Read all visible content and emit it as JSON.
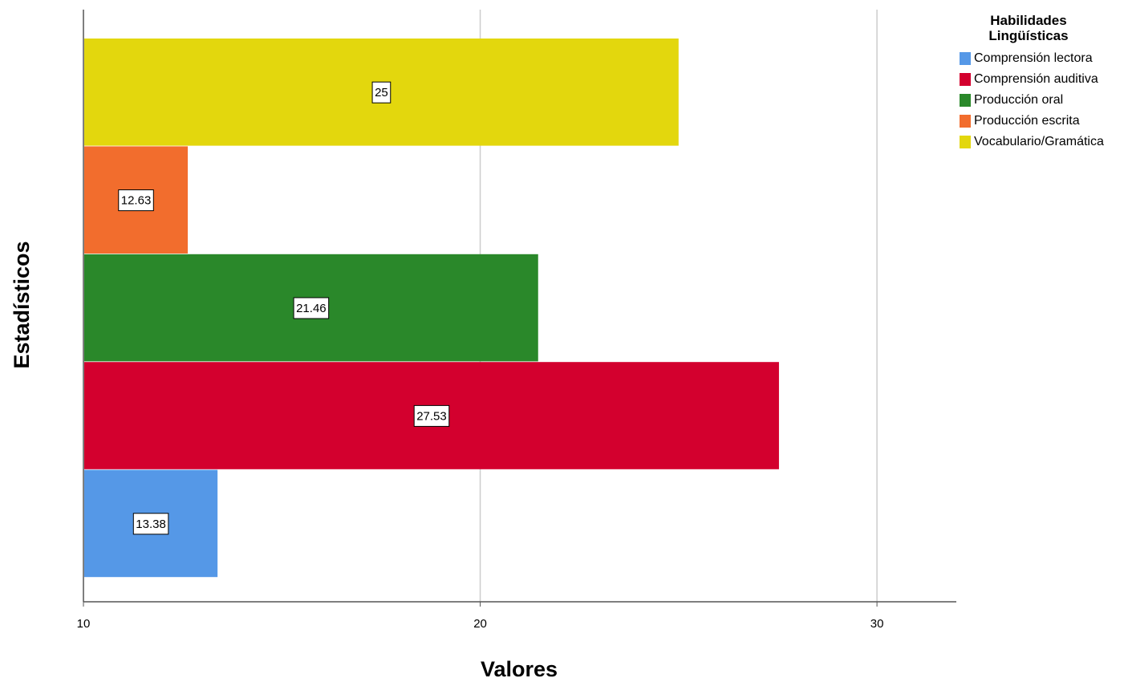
{
  "chart_data": {
    "type": "bar",
    "orientation": "horizontal",
    "xlabel": "Valores",
    "ylabel": "Estadísticos",
    "xlim": [
      10,
      32
    ],
    "xticks": [
      10,
      20,
      30
    ],
    "grid": true,
    "legend_position": "top-right",
    "legend_title": "Habilidades Lingüísticas",
    "series": [
      {
        "name": "Comprensión lectora",
        "value": 13.38,
        "label": "13.38",
        "color": "#5598E7"
      },
      {
        "name": "Comprensión auditiva",
        "value": 27.53,
        "label": "27.53",
        "color": "#D3002E"
      },
      {
        "name": "Producción oral",
        "value": 21.46,
        "label": "21.46",
        "color": "#2A882A"
      },
      {
        "name": "Producción escrita",
        "value": 12.63,
        "label": "12.63",
        "color": "#F26D2D"
      },
      {
        "name": "Vocabulario/Gramática",
        "value": 25,
        "label": "25",
        "color": "#E3D70D"
      }
    ]
  }
}
